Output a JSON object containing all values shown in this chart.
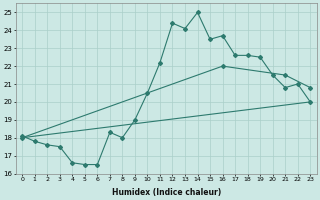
{
  "line1_x": [
    0,
    1,
    2,
    3,
    4,
    5,
    6,
    7,
    8,
    9,
    10,
    11,
    12,
    13,
    14,
    15,
    16,
    17,
    18,
    19,
    20,
    21,
    22,
    23
  ],
  "line1_y": [
    18.1,
    17.8,
    17.6,
    17.5,
    16.6,
    16.5,
    16.5,
    18.3,
    18.0,
    19.0,
    20.5,
    22.2,
    24.4,
    24.1,
    25.0,
    23.5,
    23.7,
    22.6,
    22.6,
    22.5,
    21.5,
    20.8,
    21.0,
    20.0
  ],
  "line2_x": [
    0,
    23
  ],
  "line2_y": [
    18.0,
    20.0
  ],
  "line3_x": [
    0,
    16,
    21,
    23
  ],
  "line3_y": [
    18.0,
    22.0,
    21.5,
    20.8
  ],
  "color": "#2d7a6e",
  "bg_color": "#cce8e4",
  "grid_color": "#aacfc9",
  "xlabel": "Humidex (Indice chaleur)",
  "xlim": [
    -0.5,
    23.5
  ],
  "ylim": [
    16,
    25.5
  ],
  "yticks": [
    16,
    17,
    18,
    19,
    20,
    21,
    22,
    23,
    24,
    25
  ],
  "xticks": [
    0,
    1,
    2,
    3,
    4,
    5,
    6,
    7,
    8,
    9,
    10,
    11,
    12,
    13,
    14,
    15,
    16,
    17,
    18,
    19,
    20,
    21,
    22,
    23
  ]
}
